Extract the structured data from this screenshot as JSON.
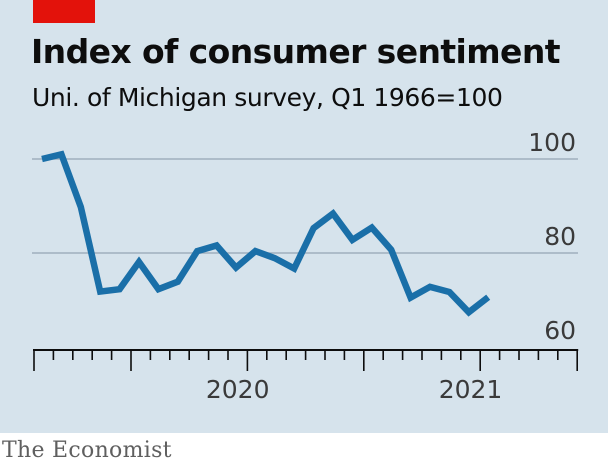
{
  "chart_data": {
    "type": "line",
    "title": "Index of consumer sentiment",
    "subtitle": "Uni. of Michigan survey, Q1 1966=100",
    "xlabel": "",
    "ylabel": "",
    "y_ticks": [
      "100",
      "80",
      "60"
    ],
    "ylim": [
      60,
      100
    ],
    "x_ticks": [
      "2020",
      "2021"
    ],
    "grid": true,
    "series": [
      {
        "color": "#1a6fa8",
        "x": [
          "2019-08",
          "2019-09",
          "2019-10",
          "2019-11",
          "2019-12",
          "2020-01",
          "2020-02",
          "2020-03",
          "2020-04",
          "2020-05",
          "2020-06",
          "2020-07",
          "2020-08",
          "2020-09",
          "2020-10",
          "2020-11",
          "2020-12",
          "2021-01",
          "2021-02",
          "2021-03",
          "2021-04",
          "2021-05",
          "2021-06",
          "2021-07",
          "2021-08",
          "2021-09",
          "2021-10",
          "2021-11",
          "2021-12"
        ],
        "values": [
          100,
          101,
          89.8,
          71.8,
          72.3,
          78.1,
          72.3,
          73.9,
          80.4,
          81.6,
          76.9,
          80.4,
          78.9,
          76.7,
          85.3,
          88.4,
          82.8,
          85.4,
          80.7,
          70.5,
          72.8,
          71.7,
          67.4,
          70.6,
          null,
          null,
          null,
          null,
          null
        ]
      }
    ]
  },
  "footer": {
    "source": "The Economist"
  },
  "colors": {
    "brand_red": "#e3120b",
    "background": "#d6e3ec",
    "line": "#1a6fa8",
    "grid": "#9fb0bd"
  }
}
